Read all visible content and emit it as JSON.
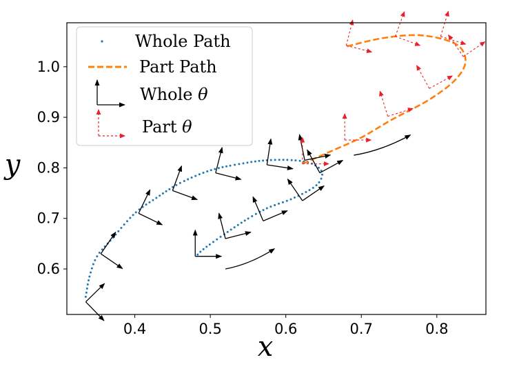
{
  "chart_data": {
    "type": "scatter",
    "xlabel": "x",
    "ylabel": "y",
    "xlim": [
      0.31,
      0.865
    ],
    "ylim": [
      0.51,
      1.087
    ],
    "xticks": [
      0.4,
      0.5,
      0.6,
      0.7,
      0.8
    ],
    "xtick_labels": [
      "0.4",
      "0.5",
      "0.6",
      "0.7",
      "0.8"
    ],
    "yticks": [
      0.6,
      0.7,
      0.8,
      0.9,
      1.0
    ],
    "ytick_labels": [
      "0.6",
      "0.7",
      "0.8",
      "0.9",
      "1.0"
    ],
    "grid": false,
    "legend_position": "upper-left",
    "legend": [
      {
        "label": "Whole Path",
        "style": "dotted",
        "color": "#1f77b4"
      },
      {
        "label": "Part Path",
        "style": "dashed",
        "color": "#ff7f0e"
      },
      {
        "label": "Whole θ",
        "style": "frame-arrows",
        "color": "#000000"
      },
      {
        "label": "Part θ",
        "style": "frame-arrows-dashed",
        "color": "#e8222a"
      }
    ],
    "series": [
      {
        "name": "Whole Path",
        "kind": "dotted",
        "color": "#1f77b4",
        "points": [
          [
            0.335,
            0.545
          ],
          [
            0.34,
            0.585
          ],
          [
            0.35,
            0.625
          ],
          [
            0.37,
            0.66
          ],
          [
            0.4,
            0.71
          ],
          [
            0.43,
            0.742
          ],
          [
            0.46,
            0.77
          ],
          [
            0.5,
            0.795
          ],
          [
            0.54,
            0.808
          ],
          [
            0.575,
            0.815
          ],
          [
            0.61,
            0.815
          ],
          [
            0.635,
            0.808
          ],
          [
            0.648,
            0.79
          ],
          [
            0.64,
            0.765
          ],
          [
            0.61,
            0.74
          ],
          [
            0.575,
            0.72
          ],
          [
            0.545,
            0.695
          ],
          [
            0.515,
            0.665
          ],
          [
            0.49,
            0.638
          ],
          [
            0.48,
            0.623
          ]
        ]
      },
      {
        "name": "Part Path",
        "kind": "dashed",
        "color": "#ff7f0e",
        "points": [
          [
            0.622,
            0.808
          ],
          [
            0.66,
            0.833
          ],
          [
            0.7,
            0.86
          ],
          [
            0.74,
            0.895
          ],
          [
            0.79,
            0.935
          ],
          [
            0.825,
            0.975
          ],
          [
            0.838,
            1.012
          ],
          [
            0.825,
            1.045
          ],
          [
            0.78,
            1.062
          ],
          [
            0.73,
            1.057
          ],
          [
            0.68,
            1.04
          ]
        ]
      }
    ],
    "whole_theta_frames": [
      [
        0.335,
        0.535,
        -0.8
      ],
      [
        0.355,
        0.63,
        -0.6
      ],
      [
        0.405,
        0.71,
        -0.45
      ],
      [
        0.45,
        0.755,
        -0.35
      ],
      [
        0.507,
        0.79,
        -0.25
      ],
      [
        0.575,
        0.806,
        -0.15
      ],
      [
        0.625,
        0.815,
        0.2
      ],
      [
        0.645,
        0.79,
        0.5
      ],
      [
        0.622,
        0.735,
        0.6
      ],
      [
        0.57,
        0.695,
        0.4
      ],
      [
        0.52,
        0.66,
        0.25
      ],
      [
        0.48,
        0.625,
        0.0
      ]
    ],
    "part_theta_frames": [
      [
        0.622,
        0.808,
        0.0
      ],
      [
        0.678,
        0.855,
        0.0
      ],
      [
        0.735,
        0.902,
        0.3
      ],
      [
        0.79,
        0.957,
        0.5
      ],
      [
        0.835,
        1.02,
        0.6
      ],
      [
        0.805,
        1.06,
        -0.3
      ],
      [
        0.745,
        1.06,
        -0.35
      ],
      [
        0.68,
        1.042,
        -0.25
      ]
    ],
    "motion_arrows": [
      {
        "from": [
          0.52,
          0.6
        ],
        "to": [
          0.585,
          0.64
        ]
      },
      {
        "from": [
          0.69,
          0.825
        ],
        "to": [
          0.765,
          0.865
        ]
      }
    ]
  }
}
